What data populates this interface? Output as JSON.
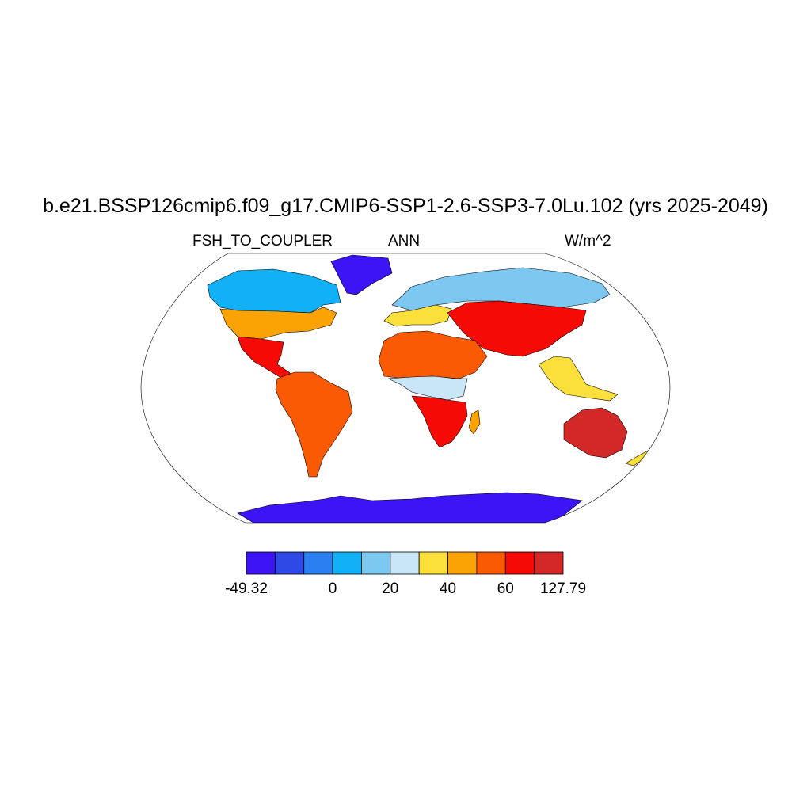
{
  "header": {
    "title": "b.e21.BSSP126cmip6.f09_g17.CMIP6-SSP1-2.6-SSP3-7.0Lu.102 (yrs 2025-2049)",
    "left_label": "FSH_TO_COUPLER",
    "center_label": "ANN",
    "right_label": "W/m^2"
  },
  "colorbar": {
    "colors": [
      "#3c14f5",
      "#2f49e6",
      "#2c7ff0",
      "#12b0f7",
      "#7cc8f0",
      "#c8e6f7",
      "#fbe03c",
      "#fba305",
      "#fb5a05",
      "#f50a05",
      "#d22828"
    ],
    "tick_labels": [
      "-49.32",
      "0",
      "20",
      "40",
      "60",
      "127.79"
    ]
  },
  "map": {
    "projection": "Robinson",
    "ocean_color": "#ffffff",
    "regions": [
      {
        "name": "Greenland",
        "color": "#3c14f5"
      },
      {
        "name": "Antarctica",
        "color": "#3c14f5"
      },
      {
        "name": "Northern North America",
        "color": "#12b0f7"
      },
      {
        "name": "Central North America",
        "color": "#fba305"
      },
      {
        "name": "Mexico and Central America",
        "color": "#f50a05"
      },
      {
        "name": "South America",
        "color": "#fb5a05"
      },
      {
        "name": "Northern Eurasia",
        "color": "#7cc8f0"
      },
      {
        "name": "Europe",
        "color": "#fbe03c"
      },
      {
        "name": "Sahara and Arabia",
        "color": "#fb5a05"
      },
      {
        "name": "Central Africa",
        "color": "#c8e6f7"
      },
      {
        "name": "Southern Africa",
        "color": "#f50a05"
      },
      {
        "name": "Central Asia",
        "color": "#fba305"
      },
      {
        "name": "Southeast Asia",
        "color": "#fbe03c"
      },
      {
        "name": "Australia",
        "color": "#d22828"
      },
      {
        "name": "Madagascar",
        "color": "#fba305"
      },
      {
        "name": "New Zealand",
        "color": "#fbe03c"
      }
    ]
  }
}
